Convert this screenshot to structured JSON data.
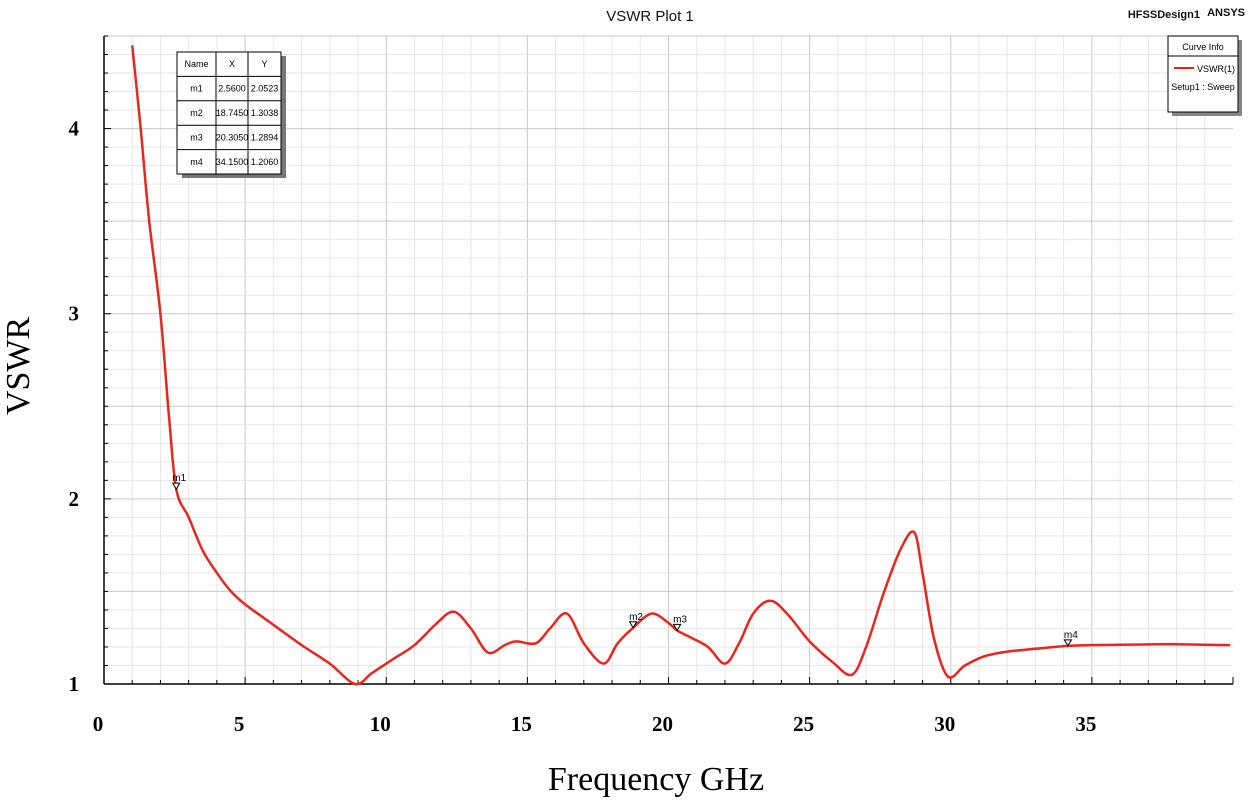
{
  "header": {
    "title": "VSWR Plot 1",
    "design_name": "HFSSDesign1",
    "brand": "ANSYS"
  },
  "legend": {
    "title": "Curve Info",
    "series_label": "VSWR(1)",
    "setup_label": "Setup1 : Sweep"
  },
  "marker_table": {
    "headers": [
      "Name",
      "X",
      "Y"
    ],
    "rows": [
      [
        "m1",
        "2.5600",
        "2.0523"
      ],
      [
        "m2",
        "18.7450",
        "1.3038"
      ],
      [
        "m3",
        "20.3050",
        "1.2894"
      ],
      [
        "m4",
        "34.1500",
        "1.2060"
      ]
    ]
  },
  "chart_data": {
    "type": "line",
    "title": "VSWR Plot 1",
    "xlabel": "Frequency GHz",
    "ylabel": "VSWR",
    "xlim": [
      0,
      40
    ],
    "ylim": [
      1,
      4.5
    ],
    "xticks": [
      0,
      5,
      10,
      15,
      20,
      25,
      30,
      35
    ],
    "yticks": [
      1,
      2,
      3,
      4
    ],
    "grid": true,
    "legend_position": "top-right",
    "series": [
      {
        "name": "VSWR(1)",
        "color": "#e8261c",
        "x": [
          1.0,
          1.3,
          1.6,
          2.0,
          2.3,
          2.56,
          3.0,
          3.5,
          4.0,
          4.5,
          5.0,
          6.0,
          7.0,
          8.0,
          8.9,
          9.5,
          10.3,
          11.0,
          11.8,
          12.4,
          13.0,
          13.6,
          14.2,
          14.6,
          15.3,
          15.8,
          16.4,
          17.0,
          17.7,
          18.2,
          18.745,
          19.4,
          20.0,
          20.305,
          20.8,
          21.4,
          22.0,
          22.5,
          23.0,
          23.6,
          24.2,
          25.0,
          25.8,
          26.5,
          27.0,
          27.6,
          28.2,
          28.7,
          29.0,
          29.4,
          29.9,
          30.5,
          31.2,
          32.0,
          33.0,
          34.15,
          35.0,
          36.0,
          37.0,
          38.0,
          39.0,
          39.9
        ],
        "y": [
          4.45,
          4.0,
          3.5,
          3.0,
          2.45,
          2.0523,
          1.9,
          1.72,
          1.6,
          1.5,
          1.43,
          1.32,
          1.21,
          1.11,
          1.0,
          1.06,
          1.14,
          1.21,
          1.33,
          1.39,
          1.3,
          1.17,
          1.21,
          1.23,
          1.22,
          1.3,
          1.38,
          1.22,
          1.11,
          1.22,
          1.3038,
          1.38,
          1.33,
          1.2894,
          1.25,
          1.2,
          1.11,
          1.22,
          1.38,
          1.45,
          1.38,
          1.23,
          1.12,
          1.05,
          1.2,
          1.48,
          1.72,
          1.82,
          1.6,
          1.25,
          1.04,
          1.1,
          1.15,
          1.175,
          1.19,
          1.206,
          1.21,
          1.212,
          1.214,
          1.215,
          1.212,
          1.21
        ]
      }
    ],
    "markers": [
      {
        "name": "m1",
        "x": 2.56,
        "y": 2.0523
      },
      {
        "name": "m2",
        "x": 18.745,
        "y": 1.3038
      },
      {
        "name": "m3",
        "x": 20.305,
        "y": 1.2894
      },
      {
        "name": "m4",
        "x": 34.15,
        "y": 1.206
      }
    ]
  }
}
